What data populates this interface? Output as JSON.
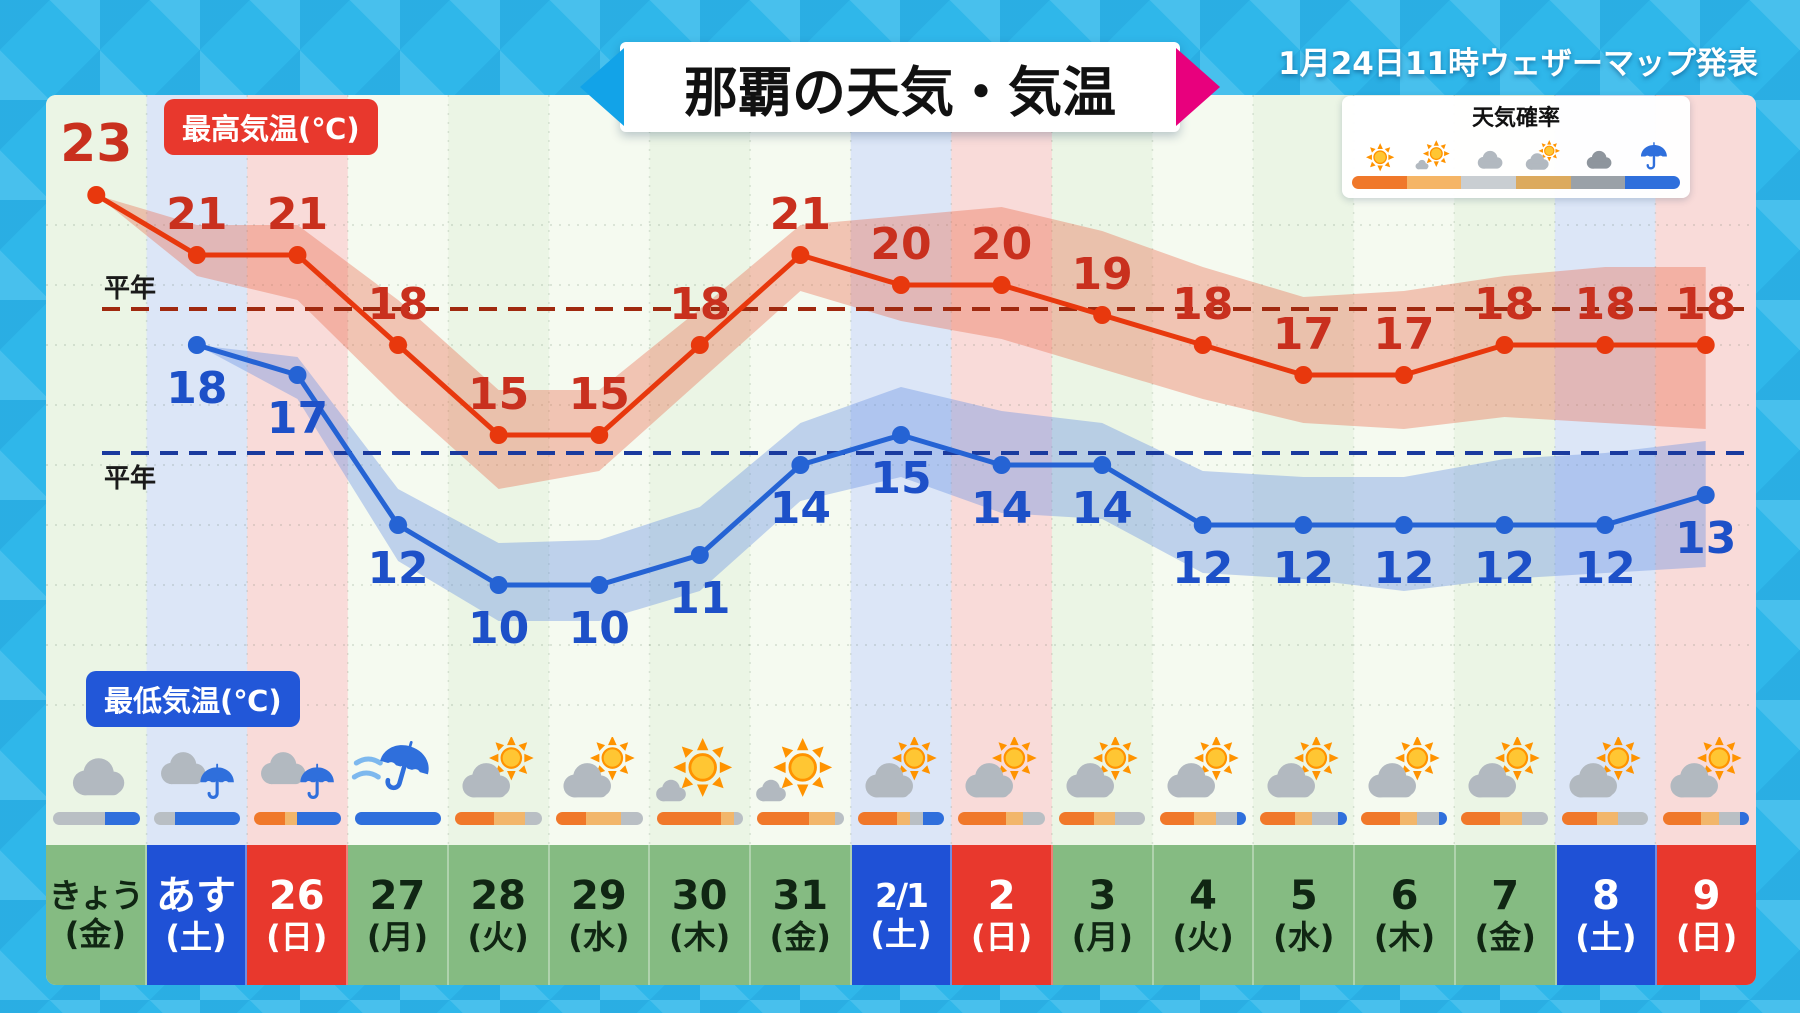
{
  "header": {
    "title": "那覇の天気・気温",
    "announcement": "1月24日11時ウェザーマップ発表"
  },
  "labels": {
    "max_temp": "最高気温(℃)",
    "min_temp": "最低気温(℃)",
    "normal": "平年"
  },
  "legend": {
    "title": "天気確率",
    "items": [
      {
        "icon": "sun",
        "color": "#f0782a"
      },
      {
        "icon": "sun-small-cloud",
        "color": "#f5b566"
      },
      {
        "icon": "cloud",
        "color": "#c9ced2"
      },
      {
        "icon": "cloud-sun",
        "color": "#dcaa5e"
      },
      {
        "icon": "cloud-dark",
        "color": "#9aa1a8"
      },
      {
        "icon": "umbrella",
        "color": "#2f6fdc"
      }
    ]
  },
  "palette": {
    "cell_weekday": "#85bb82",
    "cell_sat": "#1f51d6",
    "cell_sun": "#e8382d",
    "stripe_weekday_a": "#ebf5e5",
    "stripe_weekday_b": "#f5faf0",
    "stripe_sat": "#dce6f7",
    "stripe_sun": "#f9dbd9",
    "prob_colors": {
      "orange": "#f0782a",
      "tan": "#f2b66b",
      "gray": "#b9bfc4",
      "blue": "#2f6fdc"
    }
  },
  "chart_data": {
    "type": "line",
    "title": "那覇の天気・気温",
    "x_categories": [
      "きょう(金)",
      "あす(土)",
      "26(日)",
      "27(月)",
      "28(火)",
      "29(水)",
      "30(木)",
      "31(金)",
      "2/1(土)",
      "2(日)",
      "3(月)",
      "4(火)",
      "5(水)",
      "6(木)",
      "7(金)",
      "8(土)",
      "9(日)"
    ],
    "y_range": [
      6,
      24
    ],
    "grid": true,
    "series": [
      {
        "name": "最高気温(℃)",
        "color": "#e8380d",
        "label_color": "#c9301e",
        "values": [
          23,
          21,
          21,
          18,
          15,
          15,
          18,
          21,
          20,
          20,
          19,
          18,
          17,
          17,
          18,
          18,
          18
        ],
        "band_upper": [
          23,
          22,
          22,
          19.5,
          16.5,
          16.5,
          19.2,
          22,
          22.3,
          22.6,
          21.8,
          20.6,
          19.6,
          19.8,
          20.3,
          20.6,
          20.6
        ],
        "band_lower": [
          23,
          20.3,
          19.5,
          16.2,
          13.2,
          13.8,
          16.8,
          19.8,
          18.8,
          18.2,
          17.2,
          16.2,
          15.4,
          15.2,
          15.6,
          15.4,
          15.2
        ],
        "band_color": "rgba(235,108,80,0.38)"
      },
      {
        "name": "最低気温(℃)",
        "color": "#2563d4",
        "label_color": "#1d50c8",
        "values": [
          null,
          18,
          17,
          12,
          10,
          10,
          11,
          14,
          15,
          14,
          14,
          12,
          12,
          12,
          12,
          12,
          13
        ],
        "band_upper": [
          null,
          18,
          17.6,
          13.2,
          11.4,
          11.5,
          12.6,
          15.4,
          16.6,
          15.8,
          15.4,
          13.8,
          13.6,
          13.6,
          14.2,
          14.4,
          14.8
        ],
        "band_lower": [
          null,
          18,
          16.2,
          10.8,
          8.8,
          8.8,
          9.8,
          12.8,
          13.6,
          12.4,
          12.2,
          10.4,
          10.2,
          9.8,
          10.2,
          10.4,
          10.6
        ],
        "band_color": "rgba(108,148,228,0.40)"
      }
    ],
    "normal_lines": [
      {
        "label": "平年",
        "value": 19.2,
        "color": "#a0290f",
        "series": "max"
      },
      {
        "label": "平年",
        "value": 14.4,
        "color": "#1a3a9e",
        "series": "min"
      }
    ]
  },
  "days": [
    {
      "label": "きょう",
      "dow": "(金)",
      "type": "weekday",
      "icon": "cloud",
      "prob": [
        [
          "gray",
          60
        ],
        [
          "blue",
          40
        ]
      ]
    },
    {
      "label": "あす",
      "dow": "(土)",
      "type": "sat",
      "icon": "cloud-rain",
      "prob": [
        [
          "gray",
          25
        ],
        [
          "blue",
          75
        ]
      ]
    },
    {
      "label": "26",
      "dow": "(日)",
      "type": "sun",
      "icon": "cloud-rain",
      "prob": [
        [
          "orange",
          35
        ],
        [
          "tan",
          15
        ],
        [
          "blue",
          50
        ]
      ]
    },
    {
      "label": "27",
      "dow": "(月)",
      "type": "weekday",
      "icon": "storm",
      "prob": [
        [
          "blue",
          100
        ]
      ]
    },
    {
      "label": "28",
      "dow": "(火)",
      "type": "weekday",
      "icon": "cloud-sun",
      "prob": [
        [
          "orange",
          45
        ],
        [
          "tan",
          35
        ],
        [
          "gray",
          20
        ]
      ]
    },
    {
      "label": "29",
      "dow": "(水)",
      "type": "weekday",
      "icon": "cloud-sun",
      "prob": [
        [
          "orange",
          35
        ],
        [
          "tan",
          40
        ],
        [
          "gray",
          25
        ]
      ]
    },
    {
      "label": "30",
      "dow": "(木)",
      "type": "weekday",
      "icon": "sun-cloud",
      "prob": [
        [
          "orange",
          75
        ],
        [
          "tan",
          15
        ],
        [
          "gray",
          10
        ]
      ]
    },
    {
      "label": "31",
      "dow": "(金)",
      "type": "weekday",
      "icon": "sun-cloud",
      "prob": [
        [
          "orange",
          60
        ],
        [
          "tan",
          30
        ],
        [
          "gray",
          10
        ]
      ]
    },
    {
      "label": "2/1",
      "dow": "(土)",
      "type": "sat",
      "icon": "cloud-sun",
      "prob": [
        [
          "orange",
          45
        ],
        [
          "tan",
          15
        ],
        [
          "gray",
          15
        ],
        [
          "blue",
          25
        ]
      ]
    },
    {
      "label": "2",
      "dow": "(日)",
      "type": "sun",
      "icon": "cloud-sun",
      "prob": [
        [
          "orange",
          55
        ],
        [
          "tan",
          20
        ],
        [
          "gray",
          25
        ]
      ]
    },
    {
      "label": "3",
      "dow": "(月)",
      "type": "weekday",
      "icon": "cloud-sun",
      "prob": [
        [
          "orange",
          40
        ],
        [
          "tan",
          25
        ],
        [
          "gray",
          35
        ]
      ]
    },
    {
      "label": "4",
      "dow": "(火)",
      "type": "weekday",
      "icon": "cloud-sun",
      "prob": [
        [
          "orange",
          40
        ],
        [
          "tan",
          25
        ],
        [
          "gray",
          25
        ],
        [
          "blue",
          10
        ]
      ]
    },
    {
      "label": "5",
      "dow": "(水)",
      "type": "weekday",
      "icon": "cloud-sun",
      "prob": [
        [
          "orange",
          40
        ],
        [
          "tan",
          20
        ],
        [
          "gray",
          30
        ],
        [
          "blue",
          10
        ]
      ]
    },
    {
      "label": "6",
      "dow": "(木)",
      "type": "weekday",
      "icon": "cloud-sun",
      "prob": [
        [
          "orange",
          45
        ],
        [
          "tan",
          20
        ],
        [
          "gray",
          25
        ],
        [
          "blue",
          10
        ]
      ]
    },
    {
      "label": "7",
      "dow": "(金)",
      "type": "weekday",
      "icon": "cloud-sun",
      "prob": [
        [
          "orange",
          45
        ],
        [
          "tan",
          25
        ],
        [
          "gray",
          30
        ]
      ]
    },
    {
      "label": "8",
      "dow": "(土)",
      "type": "sat",
      "icon": "cloud-sun",
      "prob": [
        [
          "orange",
          40
        ],
        [
          "tan",
          25
        ],
        [
          "gray",
          35
        ]
      ]
    },
    {
      "label": "9",
      "dow": "(日)",
      "type": "sun",
      "icon": "cloud-sun",
      "prob": [
        [
          "orange",
          45
        ],
        [
          "tan",
          20
        ],
        [
          "gray",
          25
        ],
        [
          "blue",
          10
        ]
      ]
    }
  ]
}
